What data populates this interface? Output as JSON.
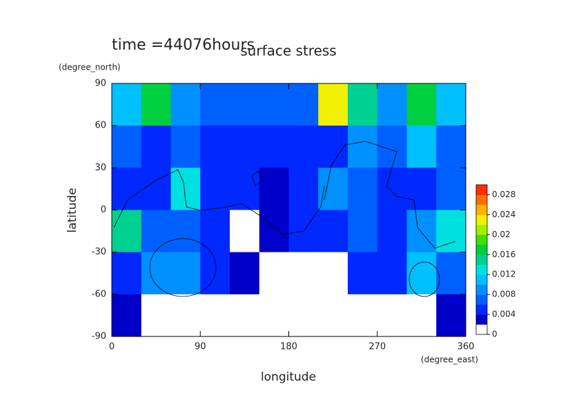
{
  "chart_data": {
    "type": "heatmap",
    "title": "surface stress",
    "subtitle": "time =44076hours",
    "x_label": "longitude",
    "x_unit": "(degree_east)",
    "y_label": "latitude",
    "y_unit": "(degree_north)",
    "x": [
      15,
      45,
      75,
      105,
      135,
      165,
      195,
      225,
      255,
      285,
      315,
      345
    ],
    "y": [
      75,
      45,
      15,
      -15,
      -45,
      -75
    ],
    "z": [
      [
        0.01,
        0.016,
        0.008,
        0.006,
        0.006,
        0.006,
        0.006,
        0.022,
        0.014,
        0.008,
        0.016,
        0.01
      ],
      [
        0.006,
        0.004,
        0.006,
        0.004,
        0.004,
        0.004,
        0.004,
        0.004,
        0.008,
        0.006,
        0.01,
        0.006
      ],
      [
        0.004,
        0.004,
        0.012,
        0.004,
        0.004,
        0.002,
        0.004,
        0.008,
        0.006,
        0.004,
        0.004,
        0.006
      ],
      [
        0.014,
        0.006,
        0.006,
        0.004,
        0.001,
        0.002,
        0.004,
        0.004,
        0.006,
        0.004,
        0.008,
        0.012
      ],
      [
        0.004,
        0.008,
        0.008,
        0.004,
        0.002,
        0.001,
        0.001,
        0.001,
        0.004,
        0.004,
        0.01,
        0.006
      ],
      [
        0.002,
        0.001,
        0.001,
        0.001,
        0.001,
        0,
        0,
        0,
        0,
        0,
        0,
        0.002
      ]
    ],
    "xlim": [
      0,
      360
    ],
    "xticks": [
      0,
      90,
      180,
      270,
      360
    ],
    "ylim": [
      -90,
      90
    ],
    "yticks": [
      -90,
      -60,
      -30,
      0,
      30,
      60,
      90
    ],
    "clim": [
      0,
      0.03
    ],
    "cticks": [
      0,
      0.004,
      0.008,
      0.012,
      0.016,
      0.02,
      0.024,
      0.028
    ],
    "colors": [
      "#ffffff",
      "#0000c8",
      "#0028ff",
      "#0060ff",
      "#0090ff",
      "#00c0ff",
      "#00e0e0",
      "#00d090",
      "#00d040",
      "#40e000",
      "#a0f000",
      "#f0f000",
      "#ffb000",
      "#ff7000",
      "#ff3000"
    ]
  }
}
